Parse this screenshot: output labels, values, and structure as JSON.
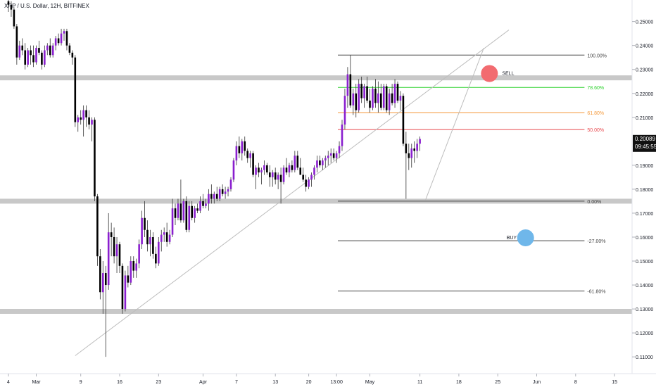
{
  "header": {
    "title": "XRP / U.S. Dollar, 12H, BITFINEX"
  },
  "price_tag": {
    "price": "0.20089",
    "countdown": "09:45:55"
  },
  "colors": {
    "bull": "#8a1fcf",
    "bear": "#000000",
    "zone": "#c8c8c8",
    "fib_line": "#444444",
    "fib_786": "#2bd12b",
    "fib_618": "#f59a3c",
    "fib_50": "#e8494e",
    "sell_dot": "#f26b70",
    "buy_dot": "#6fb7ea",
    "trendline": "#bdbdbd",
    "price_tag_bg": "#111111"
  },
  "chart_data": {
    "type": "candlestick",
    "title": "XRP / U.S. Dollar, 12H, BITFINEX",
    "ylim": [
      0.103,
      0.259
    ],
    "y_ticks": [
      {
        "value": 0.25,
        "label": "0.25000"
      },
      {
        "value": 0.24,
        "label": "0.24000"
      },
      {
        "value": 0.23,
        "label": "0.23000"
      },
      {
        "value": 0.22,
        "label": "0.22000"
      },
      {
        "value": 0.21,
        "label": "0.21000"
      },
      {
        "value": 0.19,
        "label": "0.19000"
      },
      {
        "value": 0.18,
        "label": "0.18000"
      },
      {
        "value": 0.17,
        "label": "0.17000"
      },
      {
        "value": 0.16,
        "label": "0.16000"
      },
      {
        "value": 0.15,
        "label": "0.15000"
      },
      {
        "value": 0.14,
        "label": "0.14000"
      },
      {
        "value": 0.13,
        "label": "0.13000"
      },
      {
        "value": 0.12,
        "label": "0.12000"
      },
      {
        "value": 0.11,
        "label": "0.11000"
      }
    ],
    "x_ticks": [
      {
        "bar": 0,
        "label": "4"
      },
      {
        "bar": 10,
        "label": "Mar"
      },
      {
        "bar": 26,
        "label": "9"
      },
      {
        "bar": 40,
        "label": "16"
      },
      {
        "bar": 54,
        "label": "23"
      },
      {
        "bar": 70,
        "label": "Apr"
      },
      {
        "bar": 82,
        "label": "7"
      },
      {
        "bar": 96,
        "label": "13"
      },
      {
        "bar": 108,
        "label": "20"
      },
      {
        "bar": 118,
        "label": "13:00"
      },
      {
        "bar": 130,
        "label": "May"
      },
      {
        "bar": 148,
        "label": "11"
      },
      {
        "bar": 162,
        "label": "18"
      },
      {
        "bar": 176,
        "label": "25"
      },
      {
        "bar": 190,
        "label": "Jun"
      },
      {
        "bar": 204,
        "label": "8"
      },
      {
        "bar": 218,
        "label": "15"
      }
    ],
    "candles": [
      [
        0.2585,
        0.259,
        0.254,
        0.257
      ],
      [
        0.257,
        0.2585,
        0.252,
        0.255
      ],
      [
        0.255,
        0.256,
        0.247,
        0.248
      ],
      [
        0.248,
        0.249,
        0.232,
        0.235
      ],
      [
        0.235,
        0.242,
        0.234,
        0.24
      ],
      [
        0.24,
        0.243,
        0.236,
        0.238
      ],
      [
        0.238,
        0.241,
        0.23,
        0.232
      ],
      [
        0.232,
        0.239,
        0.231,
        0.238
      ],
      [
        0.238,
        0.24,
        0.232,
        0.236
      ],
      [
        0.236,
        0.24,
        0.231,
        0.233
      ],
      [
        0.233,
        0.24,
        0.232,
        0.239
      ],
      [
        0.239,
        0.242,
        0.236,
        0.237
      ],
      [
        0.237,
        0.238,
        0.23,
        0.232
      ],
      [
        0.232,
        0.24,
        0.231,
        0.238
      ],
      [
        0.238,
        0.241,
        0.236,
        0.24
      ],
      [
        0.24,
        0.243,
        0.235,
        0.236
      ],
      [
        0.236,
        0.241,
        0.235,
        0.24
      ],
      [
        0.24,
        0.244,
        0.238,
        0.243
      ],
      [
        0.243,
        0.245,
        0.24,
        0.241
      ],
      [
        0.241,
        0.247,
        0.24,
        0.245
      ],
      [
        0.245,
        0.247,
        0.242,
        0.246
      ],
      [
        0.246,
        0.247,
        0.238,
        0.24
      ],
      [
        0.24,
        0.241,
        0.236,
        0.237
      ],
      [
        0.237,
        0.238,
        0.232,
        0.235
      ],
      [
        0.235,
        0.236,
        0.206,
        0.208
      ],
      [
        0.208,
        0.211,
        0.204,
        0.21
      ],
      [
        0.21,
        0.213,
        0.207,
        0.209
      ],
      [
        0.209,
        0.215,
        0.202,
        0.213
      ],
      [
        0.213,
        0.215,
        0.206,
        0.21
      ],
      [
        0.21,
        0.213,
        0.205,
        0.207
      ],
      [
        0.207,
        0.21,
        0.2,
        0.209
      ],
      [
        0.209,
        0.21,
        0.175,
        0.177
      ],
      [
        0.177,
        0.178,
        0.148,
        0.152
      ],
      [
        0.152,
        0.155,
        0.134,
        0.137
      ],
      [
        0.137,
        0.15,
        0.128,
        0.145
      ],
      [
        0.145,
        0.148,
        0.11,
        0.14
      ],
      [
        0.14,
        0.17,
        0.138,
        0.162
      ],
      [
        0.162,
        0.166,
        0.152,
        0.16
      ],
      [
        0.16,
        0.164,
        0.149,
        0.152
      ],
      [
        0.152,
        0.16,
        0.145,
        0.157
      ],
      [
        0.157,
        0.158,
        0.145,
        0.148
      ],
      [
        0.148,
        0.149,
        0.128,
        0.13
      ],
      [
        0.13,
        0.146,
        0.129,
        0.144
      ],
      [
        0.144,
        0.148,
        0.139,
        0.141
      ],
      [
        0.141,
        0.152,
        0.14,
        0.15
      ],
      [
        0.15,
        0.152,
        0.143,
        0.146
      ],
      [
        0.146,
        0.151,
        0.143,
        0.149
      ],
      [
        0.149,
        0.159,
        0.147,
        0.157
      ],
      [
        0.157,
        0.171,
        0.155,
        0.168
      ],
      [
        0.168,
        0.175,
        0.16,
        0.163
      ],
      [
        0.163,
        0.167,
        0.154,
        0.157
      ],
      [
        0.157,
        0.163,
        0.152,
        0.16
      ],
      [
        0.16,
        0.162,
        0.151,
        0.153
      ],
      [
        0.153,
        0.156,
        0.147,
        0.149
      ],
      [
        0.149,
        0.16,
        0.148,
        0.158
      ],
      [
        0.158,
        0.163,
        0.154,
        0.161
      ],
      [
        0.161,
        0.164,
        0.158,
        0.162
      ],
      [
        0.162,
        0.166,
        0.156,
        0.158
      ],
      [
        0.158,
        0.163,
        0.157,
        0.161
      ],
      [
        0.161,
        0.176,
        0.16,
        0.172
      ],
      [
        0.172,
        0.174,
        0.165,
        0.168
      ],
      [
        0.168,
        0.176,
        0.167,
        0.174
      ],
      [
        0.174,
        0.184,
        0.166,
        0.167
      ],
      [
        0.167,
        0.176,
        0.166,
        0.175
      ],
      [
        0.175,
        0.177,
        0.162,
        0.163
      ],
      [
        0.163,
        0.175,
        0.162,
        0.173
      ],
      [
        0.173,
        0.175,
        0.167,
        0.168
      ],
      [
        0.168,
        0.173,
        0.166,
        0.172
      ],
      [
        0.172,
        0.174,
        0.17,
        0.171
      ],
      [
        0.171,
        0.177,
        0.17,
        0.175
      ],
      [
        0.175,
        0.178,
        0.172,
        0.173
      ],
      [
        0.173,
        0.176,
        0.172,
        0.174
      ],
      [
        0.174,
        0.18,
        0.171,
        0.178
      ],
      [
        0.178,
        0.182,
        0.174,
        0.176
      ],
      [
        0.176,
        0.179,
        0.174,
        0.178
      ],
      [
        0.178,
        0.181,
        0.175,
        0.176
      ],
      [
        0.176,
        0.181,
        0.175,
        0.18
      ],
      [
        0.18,
        0.182,
        0.177,
        0.178
      ],
      [
        0.178,
        0.181,
        0.176,
        0.179
      ],
      [
        0.179,
        0.181,
        0.177,
        0.18
      ],
      [
        0.18,
        0.185,
        0.179,
        0.184
      ],
      [
        0.184,
        0.193,
        0.183,
        0.192
      ],
      [
        0.192,
        0.2,
        0.19,
        0.198
      ],
      [
        0.198,
        0.202,
        0.193,
        0.195
      ],
      [
        0.195,
        0.201,
        0.192,
        0.2
      ],
      [
        0.2,
        0.202,
        0.194,
        0.196
      ],
      [
        0.196,
        0.197,
        0.191,
        0.193
      ],
      [
        0.193,
        0.196,
        0.189,
        0.195
      ],
      [
        0.195,
        0.196,
        0.185,
        0.186
      ],
      [
        0.186,
        0.19,
        0.18,
        0.189
      ],
      [
        0.189,
        0.191,
        0.185,
        0.187
      ],
      [
        0.187,
        0.189,
        0.182,
        0.188
      ],
      [
        0.188,
        0.192,
        0.186,
        0.19
      ],
      [
        0.19,
        0.191,
        0.186,
        0.187
      ],
      [
        0.187,
        0.19,
        0.181,
        0.185
      ],
      [
        0.185,
        0.188,
        0.181,
        0.187
      ],
      [
        0.187,
        0.189,
        0.182,
        0.184
      ],
      [
        0.184,
        0.187,
        0.18,
        0.186
      ],
      [
        0.186,
        0.189,
        0.174,
        0.183
      ],
      [
        0.183,
        0.19,
        0.182,
        0.189
      ],
      [
        0.189,
        0.193,
        0.186,
        0.187
      ],
      [
        0.187,
        0.191,
        0.185,
        0.19
      ],
      [
        0.19,
        0.192,
        0.187,
        0.188
      ],
      [
        0.188,
        0.196,
        0.187,
        0.194
      ],
      [
        0.194,
        0.196,
        0.188,
        0.189
      ],
      [
        0.189,
        0.193,
        0.186,
        0.186
      ],
      [
        0.186,
        0.189,
        0.183,
        0.184
      ],
      [
        0.184,
        0.186,
        0.179,
        0.181
      ],
      [
        0.181,
        0.185,
        0.18,
        0.184
      ],
      [
        0.184,
        0.187,
        0.181,
        0.186
      ],
      [
        0.186,
        0.19,
        0.184,
        0.189
      ],
      [
        0.189,
        0.194,
        0.187,
        0.192
      ],
      [
        0.192,
        0.194,
        0.189,
        0.19
      ],
      [
        0.19,
        0.193,
        0.188,
        0.192
      ],
      [
        0.192,
        0.194,
        0.189,
        0.193
      ],
      [
        0.193,
        0.196,
        0.19,
        0.194
      ],
      [
        0.194,
        0.197,
        0.191,
        0.195
      ],
      [
        0.195,
        0.197,
        0.192,
        0.193
      ],
      [
        0.193,
        0.196,
        0.191,
        0.195
      ],
      [
        0.195,
        0.2,
        0.193,
        0.198
      ],
      [
        0.198,
        0.209,
        0.196,
        0.207
      ],
      [
        0.207,
        0.222,
        0.205,
        0.219
      ],
      [
        0.219,
        0.231,
        0.214,
        0.228
      ],
      [
        0.228,
        0.236,
        0.214,
        0.215
      ],
      [
        0.215,
        0.222,
        0.211,
        0.22
      ],
      [
        0.22,
        0.224,
        0.21,
        0.213
      ],
      [
        0.213,
        0.226,
        0.212,
        0.224
      ],
      [
        0.224,
        0.227,
        0.216,
        0.218
      ],
      [
        0.218,
        0.224,
        0.214,
        0.223
      ],
      [
        0.223,
        0.227,
        0.216,
        0.217
      ],
      [
        0.217,
        0.222,
        0.212,
        0.214
      ],
      [
        0.214,
        0.223,
        0.213,
        0.222
      ],
      [
        0.222,
        0.226,
        0.214,
        0.216
      ],
      [
        0.216,
        0.225,
        0.212,
        0.22
      ],
      [
        0.22,
        0.224,
        0.213,
        0.214
      ],
      [
        0.214,
        0.224,
        0.213,
        0.223
      ],
      [
        0.223,
        0.224,
        0.212,
        0.213
      ],
      [
        0.213,
        0.222,
        0.211,
        0.22
      ],
      [
        0.22,
        0.224,
        0.215,
        0.216
      ],
      [
        0.216,
        0.226,
        0.214,
        0.224
      ],
      [
        0.224,
        0.225,
        0.216,
        0.217
      ],
      [
        0.217,
        0.221,
        0.213,
        0.219
      ],
      [
        0.219,
        0.22,
        0.198,
        0.199
      ],
      [
        0.199,
        0.204,
        0.176,
        0.195
      ],
      [
        0.195,
        0.199,
        0.188,
        0.193
      ],
      [
        0.193,
        0.199,
        0.189,
        0.197
      ],
      [
        0.197,
        0.2,
        0.191,
        0.196
      ],
      [
        0.196,
        0.201,
        0.193,
        0.199
      ],
      [
        0.199,
        0.202,
        0.196,
        0.201
      ]
    ],
    "zones": [
      0.2265,
      0.175,
      0.129
    ],
    "fibonacci": [
      {
        "label": "100.00%",
        "value": 0.236
      },
      {
        "label": "78.60%",
        "value": 0.2225
      },
      {
        "label": "61.80%",
        "value": 0.212
      },
      {
        "label": "50.00%",
        "value": 0.2049
      },
      {
        "label": "0.00%",
        "value": 0.175
      },
      {
        "label": "-27.00%",
        "value": 0.1585
      },
      {
        "label": "-61.80%",
        "value": 0.1375
      }
    ],
    "fib_range_bars": [
      120,
      192
    ],
    "trendlines": [
      {
        "bar1": 24,
        "price1": 0.1105,
        "bar2": 180,
        "price2": 0.2465
      },
      {
        "bar1": 150,
        "price1": 0.1755,
        "bar2": 171,
        "price2": 0.239
      }
    ],
    "markers": [
      {
        "label": "SELL",
        "bar": 173,
        "price": 0.2283
      },
      {
        "label": "BUY",
        "bar": 186,
        "price": 0.1597
      }
    ],
    "last_price": 0.20089
  }
}
